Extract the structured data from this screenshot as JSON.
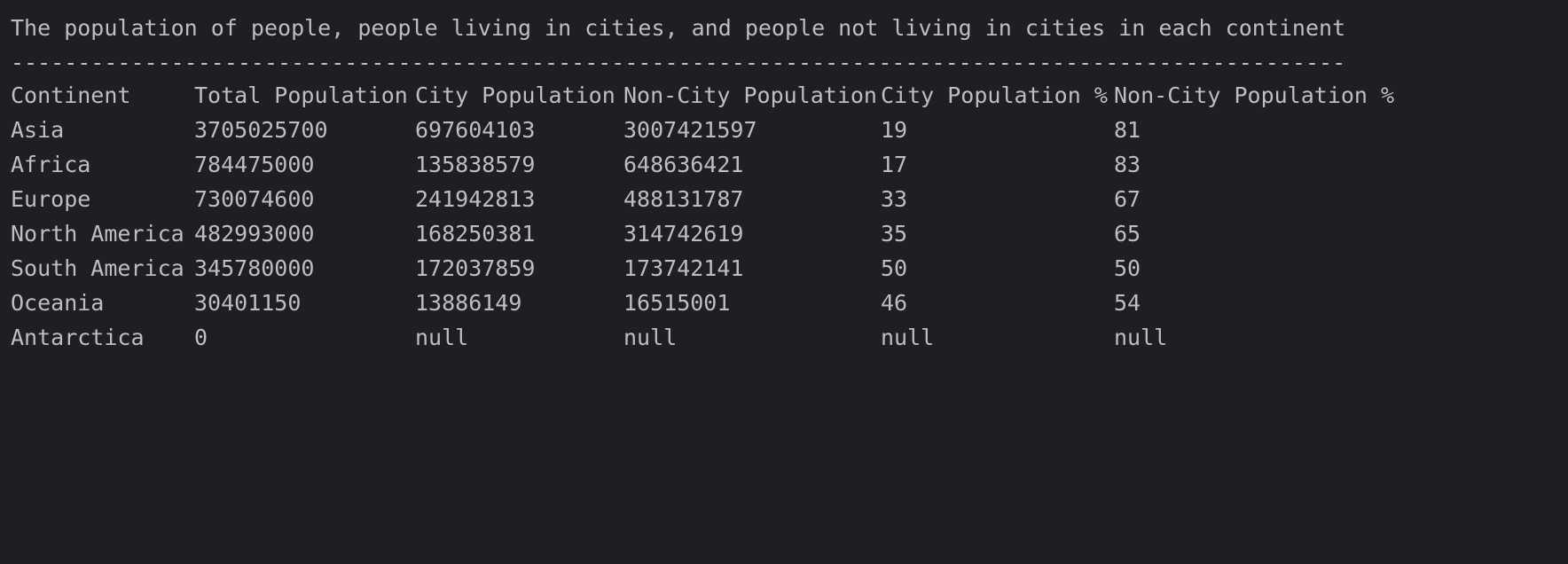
{
  "console": {
    "title": "The population of people, people living in cities, and people not living in cities in each continent",
    "divider": "----------------------------------------------------------------------------------------------------"
  },
  "table": {
    "headers": [
      "Continent",
      "Total Population",
      "City Population",
      "Non-City Population",
      "City Population %",
      "Non-City Population %"
    ],
    "rows": [
      [
        "Asia",
        "3705025700",
        "697604103",
        "3007421597",
        "19",
        "81"
      ],
      [
        "Africa",
        "784475000",
        "135838579",
        "648636421",
        "17",
        "83"
      ],
      [
        "Europe",
        "730074600",
        "241942813",
        "488131787",
        "33",
        "67"
      ],
      [
        "North America",
        "482993000",
        "168250381",
        "314742619",
        "35",
        "65"
      ],
      [
        "South America",
        "345780000",
        "172037859",
        "173742141",
        "50",
        "50"
      ],
      [
        "Oceania",
        "30401150",
        "13886149",
        "16515001",
        "46",
        "54"
      ],
      [
        "Antarctica",
        "0",
        "null",
        "null",
        "null",
        "null"
      ]
    ]
  },
  "colors": {
    "background": "#1e1f22",
    "text": "#bcbec4"
  }
}
